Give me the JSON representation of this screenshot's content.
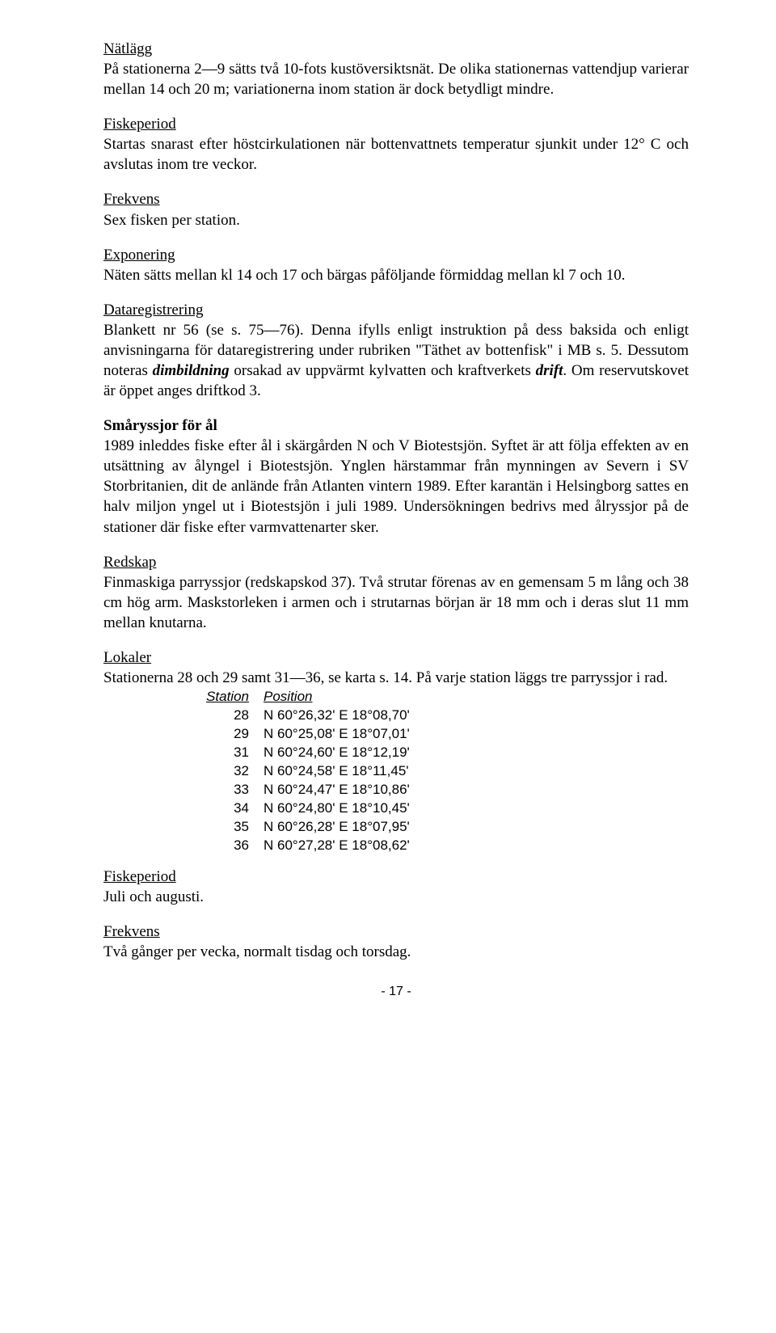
{
  "s1": {
    "heading": "Nätlägg",
    "body": "På stationerna 2—9 sätts två 10-fots kustöversiktsnät. De olika stationernas vattendjup varierar mellan 14 och 20 m; variationerna inom station är dock betydligt mindre."
  },
  "s2": {
    "heading": "Fiskeperiod",
    "body": "Startas snarast efter höstcirkulationen när bottenvattnets temperatur sjunkit under 12° C och avslutas inom tre veckor."
  },
  "s3": {
    "heading": "Frekvens",
    "body": "Sex fisken per station."
  },
  "s4": {
    "heading": "Exponering",
    "body": "Näten sätts mellan kl 14 och 17 och bärgas påföljande förmiddag mellan kl 7 och 10."
  },
  "s5": {
    "heading": "Dataregistrering",
    "body1": "Blankett nr 56 (se s. 75—76). Denna ifylls enligt instruktion på dess baksida och enligt anvisningarna för dataregistrering under rubriken \"Täthet av bottenfisk\" i MB s. 5. Dessutom noteras ",
    "em1": "dimbildning",
    "body2": " orsakad av uppvärmt kylvatten och kraftverkets ",
    "em2": "drift",
    "body3": ". Om reservutskovet är öppet anges driftkod 3."
  },
  "s6": {
    "heading": "Småryssjor för ål",
    "body": "1989 inleddes fiske efter ål i skärgården N och V Biotestsjön. Syftet är att följa effekten av en utsättning av ålyngel i Biotestsjön. Ynglen härstammar från mynningen av Severn i SV Storbritanien, dit de anlände från Atlanten vintern 1989. Efter karantän i Helsingborg sattes en halv miljon yngel ut i Biotestsjön i juli 1989. Undersökningen bedrivs med ålryssjor på de stationer där fiske efter varmvattenarter sker."
  },
  "s7": {
    "heading": "Redskap",
    "body": "Finmaskiga parryssjor (redskapskod 37). Två strutar förenas av en gemensam 5 m lång och 38 cm hög arm. Maskstorleken i armen och i strutarnas början är 18 mm och i deras slut 11 mm mellan knutarna."
  },
  "s8": {
    "heading": "Lokaler",
    "body": "Stationerna 28 och 29 samt 31—36, se karta s. 14. På varje station läggs tre parryssjor i rad."
  },
  "table": {
    "col1": "Station",
    "col2": "Position",
    "rows": [
      {
        "station": "28",
        "position": "N 60°26,32' E 18°08,70'"
      },
      {
        "station": "29",
        "position": "N 60°25,08' E 18°07,01'"
      },
      {
        "station": "31",
        "position": "N 60°24,60' E 18°12,19'"
      },
      {
        "station": "32",
        "position": "N 60°24,58' E 18°11,45'"
      },
      {
        "station": "33",
        "position": "N 60°24,47' E 18°10,86'"
      },
      {
        "station": "34",
        "position": "N 60°24,80' E 18°10,45'"
      },
      {
        "station": "35",
        "position": "N 60°26,28' E 18°07,95'"
      },
      {
        "station": "36",
        "position": "N 60°27,28' E 18°08,62'"
      }
    ]
  },
  "s9": {
    "heading": "Fiskeperiod",
    "body": "Juli och augusti."
  },
  "s10": {
    "heading": "Frekvens",
    "body": "Två gånger per vecka, normalt tisdag och torsdag."
  },
  "pagenum": "- 17 -"
}
